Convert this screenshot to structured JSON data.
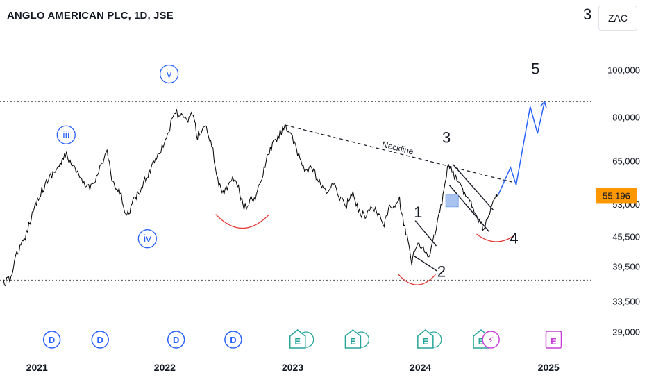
{
  "header": {
    "title": "ANGLO AMERICAN PLC, 1D, JSE",
    "corner_number": "3",
    "currency": "ZAC"
  },
  "colors": {
    "price_line": "#000000",
    "blue_label": "#2962ff",
    "projection": "#2962ff",
    "cup_arc": "#e53935",
    "price_tag_bg": "#ff9800",
    "dividend_badge": "#2962ff",
    "earnings_badge": "#26a69a",
    "earnings_future": "#c940d8"
  },
  "chart_data": {
    "type": "line",
    "title": "ANGLO AMERICAN PLC, 1D, JSE",
    "xlabel": "",
    "ylabel": "",
    "y_scale": "log",
    "ylim": [
      26500,
      118000
    ],
    "x_ticks": [
      {
        "x": "2021-01-01",
        "label": "2021"
      },
      {
        "x": "2022-01-01",
        "label": "2022"
      },
      {
        "x": "2023-01-01",
        "label": "2023"
      },
      {
        "x": "2024-01-01",
        "label": "2024"
      },
      {
        "x": "2025-01-01",
        "label": "2025"
      }
    ],
    "y_ticks": [
      {
        "value": 100000,
        "label": "100,000"
      },
      {
        "value": 80000,
        "label": "80,000"
      },
      {
        "value": 65000,
        "label": "65,000"
      },
      {
        "value": 53000,
        "label": "53,000"
      },
      {
        "value": 45500,
        "label": "45,500"
      },
      {
        "value": 39500,
        "label": "39,500"
      },
      {
        "value": 33500,
        "label": "33,500"
      },
      {
        "value": 29000,
        "label": "29,000"
      }
    ],
    "last_price": {
      "value": 55196,
      "label": "55,196"
    },
    "series": [
      {
        "values": [
          [
            "2020-11-02",
            36500
          ],
          [
            "2020-11-20",
            37000
          ],
          [
            "2020-12-10",
            42000
          ],
          [
            "2020-12-31",
            44500
          ],
          [
            "2021-01-20",
            50000
          ],
          [
            "2021-02-10",
            55000
          ],
          [
            "2021-03-01",
            58000
          ],
          [
            "2021-03-20",
            61000
          ],
          [
            "2021-04-10",
            63500
          ],
          [
            "2021-05-01",
            67000
          ],
          [
            "2021-05-15",
            64000
          ],
          [
            "2021-06-01",
            61000
          ],
          [
            "2021-06-20",
            58000
          ],
          [
            "2021-07-10",
            57500
          ],
          [
            "2021-08-01",
            62000
          ],
          [
            "2021-08-25",
            68000
          ],
          [
            "2021-09-10",
            58000
          ],
          [
            "2021-10-01",
            56000
          ],
          [
            "2021-10-20",
            50000
          ],
          [
            "2021-11-10",
            54000
          ],
          [
            "2021-12-01",
            57000
          ],
          [
            "2021-12-20",
            61000
          ],
          [
            "2022-01-10",
            66000
          ],
          [
            "2022-02-01",
            70000
          ],
          [
            "2022-02-20",
            76000
          ],
          [
            "2022-03-08",
            82000
          ],
          [
            "2022-03-25",
            80000
          ],
          [
            "2022-04-10",
            78000
          ],
          [
            "2022-04-25",
            82000
          ],
          [
            "2022-05-10",
            73000
          ],
          [
            "2022-06-01",
            77000
          ],
          [
            "2022-06-20",
            70000
          ],
          [
            "2022-07-10",
            58000
          ],
          [
            "2022-07-25",
            56000
          ],
          [
            "2022-08-15",
            60000
          ],
          [
            "2022-09-01",
            58000
          ],
          [
            "2022-09-20",
            52000
          ],
          [
            "2022-10-10",
            54000
          ],
          [
            "2022-10-25",
            55000
          ],
          [
            "2022-11-10",
            60000
          ],
          [
            "2022-11-25",
            66000
          ],
          [
            "2022-12-10",
            70000
          ],
          [
            "2023-01-01",
            74000
          ],
          [
            "2023-01-15",
            77000
          ],
          [
            "2023-01-30",
            74000
          ],
          [
            "2023-02-20",
            67000
          ],
          [
            "2023-03-15",
            62000
          ],
          [
            "2023-04-01",
            63000
          ],
          [
            "2023-04-20",
            59000
          ],
          [
            "2023-05-10",
            56000
          ],
          [
            "2023-06-01",
            58000
          ],
          [
            "2023-06-20",
            55000
          ],
          [
            "2023-07-10",
            53000
          ],
          [
            "2023-07-25",
            56000
          ],
          [
            "2023-08-15",
            51000
          ],
          [
            "2023-09-01",
            50000
          ],
          [
            "2023-09-20",
            53000
          ],
          [
            "2023-10-10",
            50000
          ],
          [
            "2023-10-25",
            48500
          ],
          [
            "2023-11-10",
            52000
          ],
          [
            "2023-11-25",
            52500
          ],
          [
            "2023-12-08",
            54000
          ],
          [
            "2023-12-20",
            48000
          ],
          [
            "2024-01-05",
            44000
          ],
          [
            "2024-01-12",
            40000
          ],
          [
            "2024-01-20",
            42500
          ],
          [
            "2024-02-05",
            44000
          ],
          [
            "2024-02-20",
            42000
          ],
          [
            "2024-03-01",
            41000
          ],
          [
            "2024-03-15",
            45000
          ],
          [
            "2024-03-29",
            50000
          ],
          [
            "2024-04-10",
            55000
          ],
          [
            "2024-04-26",
            64000
          ],
          [
            "2024-05-06",
            62000
          ],
          [
            "2024-05-20",
            59000
          ],
          [
            "2024-06-05",
            57000
          ],
          [
            "2024-06-20",
            55000
          ],
          [
            "2024-07-05",
            52500
          ],
          [
            "2024-07-20",
            49500
          ],
          [
            "2024-08-05",
            47000
          ],
          [
            "2024-08-15",
            50000
          ],
          [
            "2024-08-28",
            52500
          ],
          [
            "2024-09-10",
            55196
          ]
        ]
      }
    ],
    "projection": [
      [
        "2024-09-14",
        55196
      ],
      [
        "2024-10-20",
        63000
      ],
      [
        "2024-11-05",
        58000
      ],
      [
        "2024-12-15",
        84000
      ],
      [
        "2025-01-05",
        74000
      ],
      [
        "2025-01-25",
        86000
      ]
    ],
    "annotations": [
      {
        "text": "iii",
        "style": "circled",
        "x": "2021-04-30",
        "y": 73500
      },
      {
        "text": "v",
        "style": "circled",
        "x": "2022-02-18",
        "y": 98000
      },
      {
        "text": "iv",
        "style": "circled",
        "x": "2021-12-18",
        "y": 45000
      },
      {
        "text": "Neckline",
        "style": "italic",
        "x": "2023-12-01",
        "y": 68200
      },
      {
        "text": "3",
        "x": "2024-04-20",
        "y": 70800
      },
      {
        "text": "1",
        "x": "2024-01-30",
        "y": 49800
      },
      {
        "text": "2",
        "x": "2024-04-06",
        "y": 37600
      },
      {
        "text": "4",
        "x": "2024-10-30",
        "y": 44000
      },
      {
        "text": "5",
        "x": "2024-12-30",
        "y": 98000
      }
    ],
    "horizontal_lines": [
      86000,
      37000
    ],
    "neckline": [
      [
        "2023-01-15",
        77000
      ],
      [
        "2024-10-25",
        58800
      ]
    ],
    "event_badges": [
      {
        "label": "D",
        "kind": "dividend",
        "x": "2021-03-20"
      },
      {
        "label": "D",
        "kind": "dividend",
        "x": "2021-08-05"
      },
      {
        "label": "D",
        "kind": "dividend",
        "x": "2022-03-10"
      },
      {
        "label": "D",
        "kind": "dividend",
        "x": "2022-08-20"
      },
      {
        "label": "E",
        "kind": "earnings",
        "x": "2023-02-20"
      },
      {
        "label": "E",
        "kind": "earnings",
        "x": "2023-07-28"
      },
      {
        "label": "E",
        "kind": "earnings",
        "x": "2024-02-20"
      },
      {
        "label": "E",
        "kind": "earnings",
        "x": "2024-07-28"
      },
      {
        "label": "⚡",
        "kind": "event",
        "x": "2024-08-25"
      },
      {
        "label": "E",
        "kind": "earnings-future",
        "x": "2025-02-20"
      }
    ]
  }
}
